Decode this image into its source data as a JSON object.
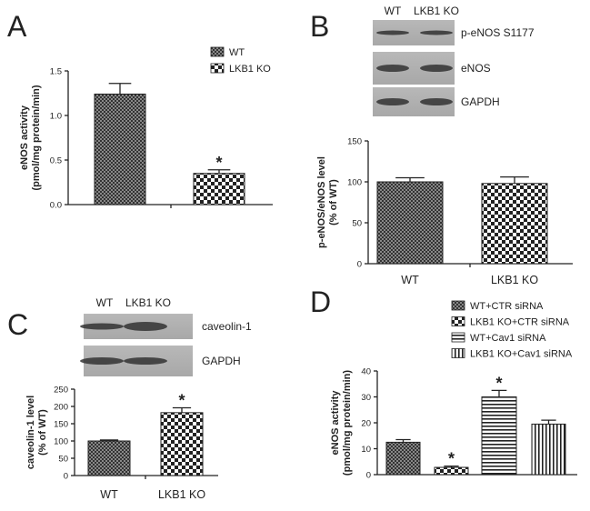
{
  "chart_data": [
    {
      "type": "bar",
      "panel": "A",
      "y_label": [
        "eNOS activity",
        "(pmol/mg protein/min)"
      ],
      "categories": [
        null,
        null
      ],
      "values": [
        1.24,
        0.35
      ],
      "errors": [
        0.12,
        0.04
      ],
      "annotations": [
        null,
        "*"
      ],
      "patterns": [
        "crosshatch",
        "checker"
      ],
      "legend": [
        "WT",
        "LKB1 KO"
      ],
      "ylim": [
        0,
        1.5
      ],
      "yticks": [
        {
          "value": 0,
          "label": "0.0"
        },
        0.5,
        {
          "value": 1,
          "label": "1.0"
        },
        1.5
      ]
    },
    {
      "type": "bar",
      "panel": "B",
      "y_label": [
        "p-eNOS/eNOS level",
        "(% of WT)"
      ],
      "categories": [
        "WT",
        "LKB1 KO"
      ],
      "values": [
        100,
        98
      ],
      "errors": [
        5,
        8
      ],
      "annotations": [
        null,
        null
      ],
      "patterns": [
        "crosshatch",
        "checker"
      ],
      "blots": {
        "columns": [
          "WT",
          "LKB1 KO"
        ],
        "rows": [
          "p-eNOS S1177",
          "eNOS",
          "GAPDH"
        ]
      },
      "ylim": [
        0,
        150
      ],
      "yticks": [
        0,
        50,
        100,
        150
      ]
    },
    {
      "type": "bar",
      "panel": "C",
      "y_label": [
        "caveolin-1 level",
        "(% of WT)"
      ],
      "categories": [
        "WT",
        "LKB1 KO"
      ],
      "values": [
        100,
        182
      ],
      "errors": [
        3,
        14
      ],
      "annotations": [
        null,
        "*"
      ],
      "patterns": [
        "crosshatch",
        "checker"
      ],
      "blots": {
        "columns": [
          "WT",
          "LKB1 KO"
        ],
        "rows": [
          "caveolin-1",
          "GAPDH"
        ]
      },
      "ylim": [
        0,
        250
      ],
      "yticks": [
        0,
        50,
        100,
        150,
        200,
        250
      ]
    },
    {
      "type": "bar",
      "panel": "D",
      "y_label": [
        "eNOS activity",
        "(pmol/mg protein/min)"
      ],
      "categories": [
        null,
        null,
        null,
        null
      ],
      "values": [
        12.5,
        2.8,
        30,
        19.5
      ],
      "errors": [
        1,
        0.5,
        2.5,
        1.5
      ],
      "annotations": [
        null,
        "*",
        "*",
        null
      ],
      "patterns": [
        "crosshatch",
        "checker",
        "hstripe",
        "vstripe"
      ],
      "legend": [
        "WT+CTR siRNA",
        "LKB1 KO+CTR siRNA",
        "WT+Cav1 siRNA",
        "LKB1 KO+Cav1 siRNA"
      ],
      "ylim": [
        0,
        40
      ],
      "yticks": [
        0,
        10,
        20,
        30,
        40
      ]
    }
  ]
}
